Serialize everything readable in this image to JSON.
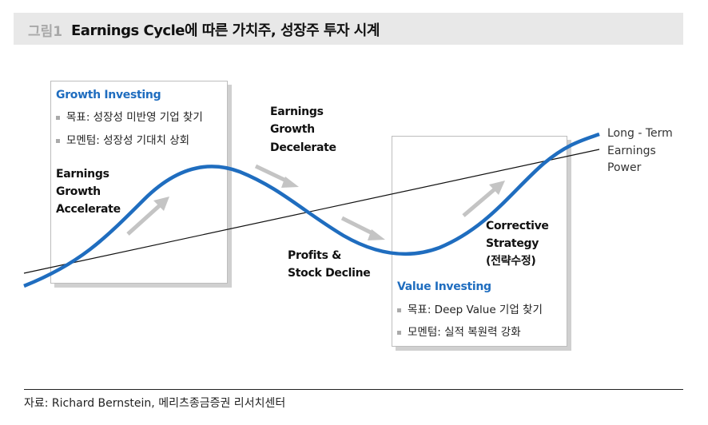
{
  "header": {
    "figure_number": "그림1",
    "title": "Earnings Cycle에 따른 가치주, 성장주 투자 시계"
  },
  "growth_box": {
    "title": "Growth Investing",
    "bullets": [
      "목표: 성장성 미반영 기업 찾기",
      "모멘텀: 성장성 기대치 상회"
    ]
  },
  "value_box": {
    "title": "Value Investing",
    "bullets": [
      "목표: Deep Value 기업 찾기",
      "모멘텀: 실적 복원력 강화"
    ]
  },
  "labels": {
    "accelerate": [
      "Earnings",
      "Growth",
      "Accelerate"
    ],
    "decelerate": [
      "Earnings",
      "Growth",
      "Decelerate"
    ],
    "decline": [
      "Profits &",
      "Stock Decline"
    ],
    "corrective": [
      "Corrective",
      "Strategy",
      "(전략수정)"
    ],
    "long_term": [
      "Long - Term",
      "Earnings",
      "Power"
    ]
  },
  "colors": {
    "curve": "#1f6dbf",
    "arrow": "#c4c4c4",
    "trend": "#111111"
  },
  "footer": {
    "source": "자료: Richard Bernstein, 메리츠종금증권 리서치센터"
  }
}
